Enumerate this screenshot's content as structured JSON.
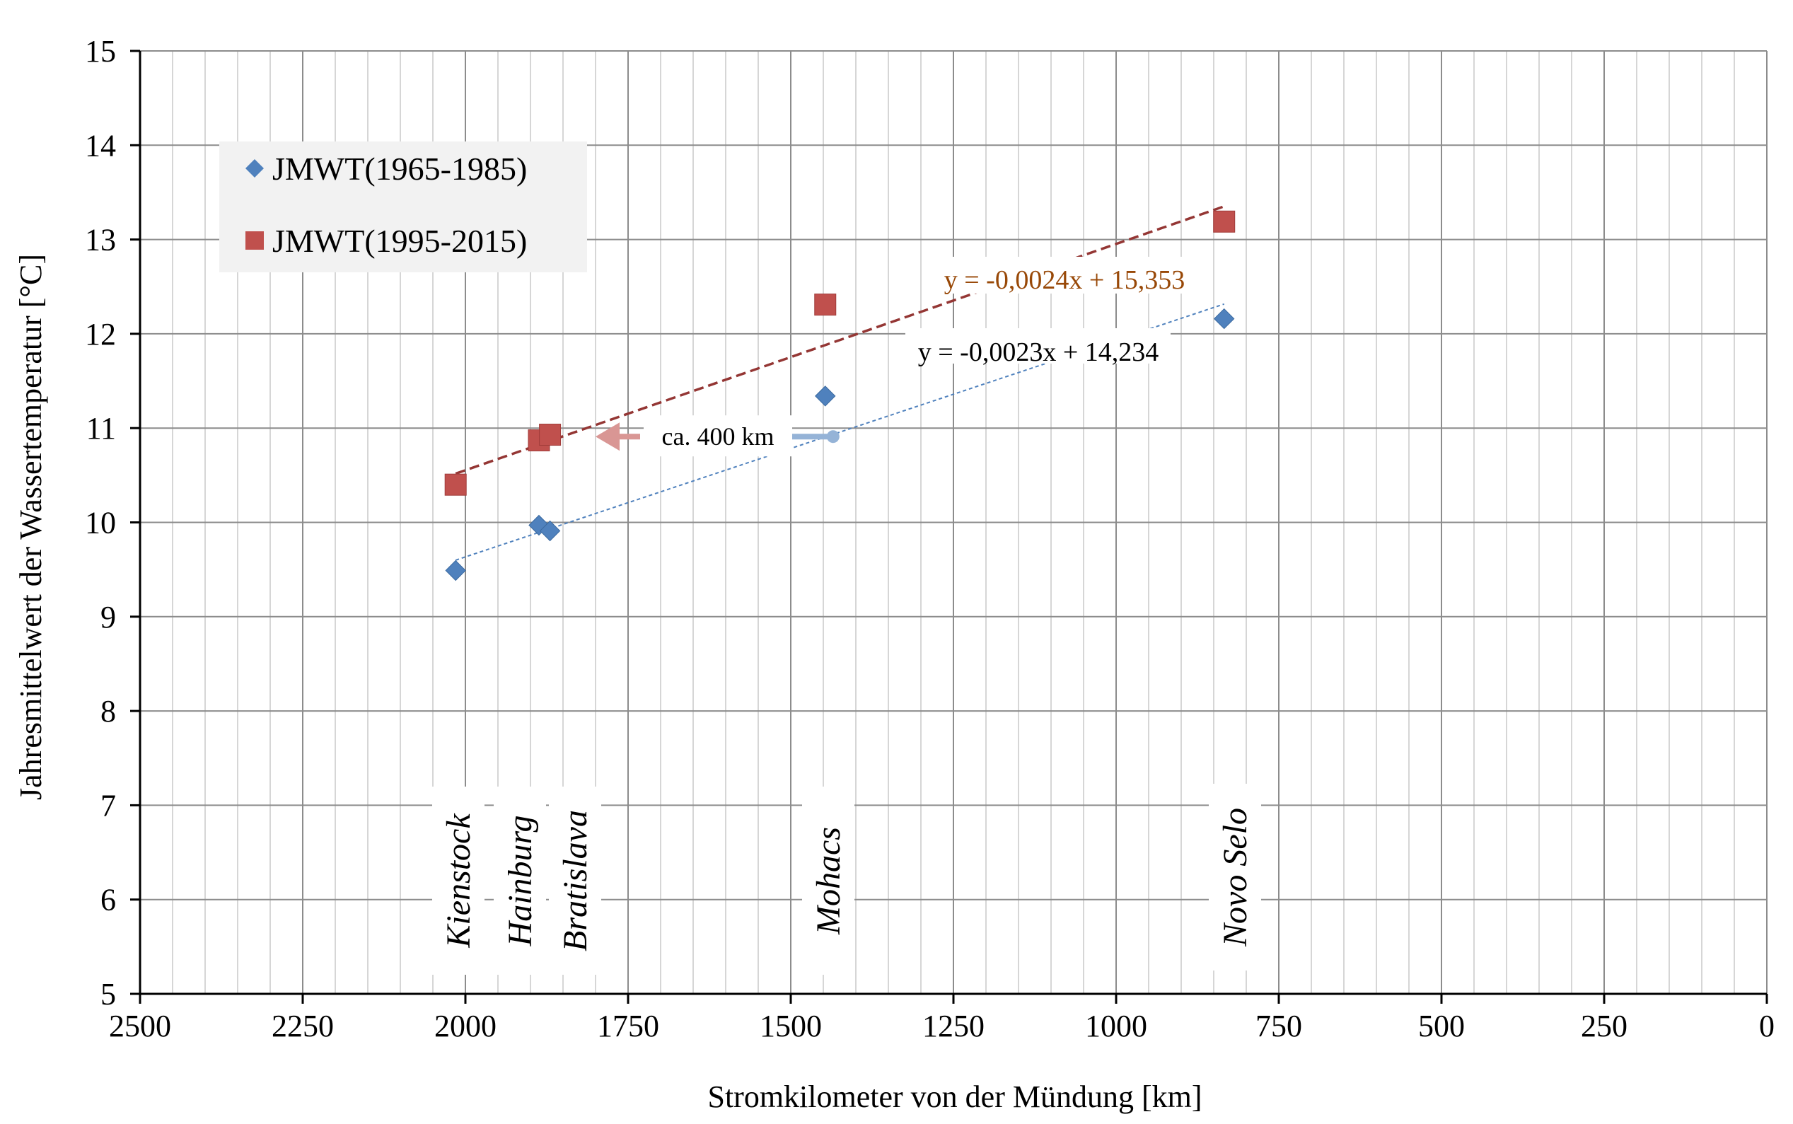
{
  "chart_data": {
    "type": "scatter",
    "title": "",
    "xlabel": "Stromkilometer von der Mündung [km]",
    "ylabel": "Jahresmittelwert der Wassertemperatur [°C]",
    "xlim": [
      2500,
      0
    ],
    "ylim": [
      5,
      15
    ],
    "x_reversed": true,
    "x_ticks": [
      2500,
      2250,
      2000,
      1750,
      1500,
      1250,
      1000,
      750,
      500,
      250,
      0
    ],
    "x_tick_labels": [
      "2500",
      "2250",
      "2000",
      "1750",
      "1500",
      "1250",
      "1000",
      "750",
      "500",
      "250",
      "0"
    ],
    "y_ticks": [
      5,
      6,
      7,
      8,
      9,
      10,
      11,
      12,
      13,
      14,
      15
    ],
    "y_tick_labels": [
      "5",
      "6",
      "7",
      "8",
      "9",
      "10",
      "11",
      "12",
      "13",
      "14",
      "15"
    ],
    "grid": true,
    "legend_position": "top-left",
    "series": [
      {
        "name": "JMWT(1965-1985)",
        "marker": "diamond",
        "color": "#4F81BD",
        "x": [
          2015,
          1887,
          1870,
          1447,
          834
        ],
        "y": [
          9.49,
          9.97,
          9.91,
          11.34,
          12.16
        ],
        "trendline": {
          "equation": "y = -0,0023x + 14,234",
          "slope": -0.0023,
          "intercept": 14.234,
          "x_range": [
            2015,
            834
          ],
          "color": "#4F81BD",
          "label_color": "#000000"
        }
      },
      {
        "name": "JMWT(1995-2015)",
        "marker": "square",
        "color": "#C0504D",
        "x": [
          2015,
          1887,
          1870,
          1447,
          834
        ],
        "y": [
          10.4,
          10.87,
          10.93,
          12.31,
          13.19
        ],
        "trendline": {
          "equation": "y = -0,0024x + 15,353",
          "slope": -0.0024,
          "intercept": 15.353,
          "x_range": [
            2015,
            834
          ],
          "color": "#943634",
          "label_color": "#984807"
        }
      }
    ],
    "stations": [
      {
        "name": "Kienstock",
        "x": 2015
      },
      {
        "name": "Hainburg",
        "x": 1883
      },
      {
        "name": "Bratislava",
        "x": 1868
      },
      {
        "name": "Mohacs",
        "x": 1447
      },
      {
        "name": "Novo Selo",
        "x": 834
      }
    ],
    "annotations": [
      {
        "text": "ca. 400 km",
        "from_x": 1435,
        "to_x": 1800,
        "y": 11.0,
        "arrow_color": "#D99694",
        "tail_color": "#95B3D7"
      }
    ]
  }
}
